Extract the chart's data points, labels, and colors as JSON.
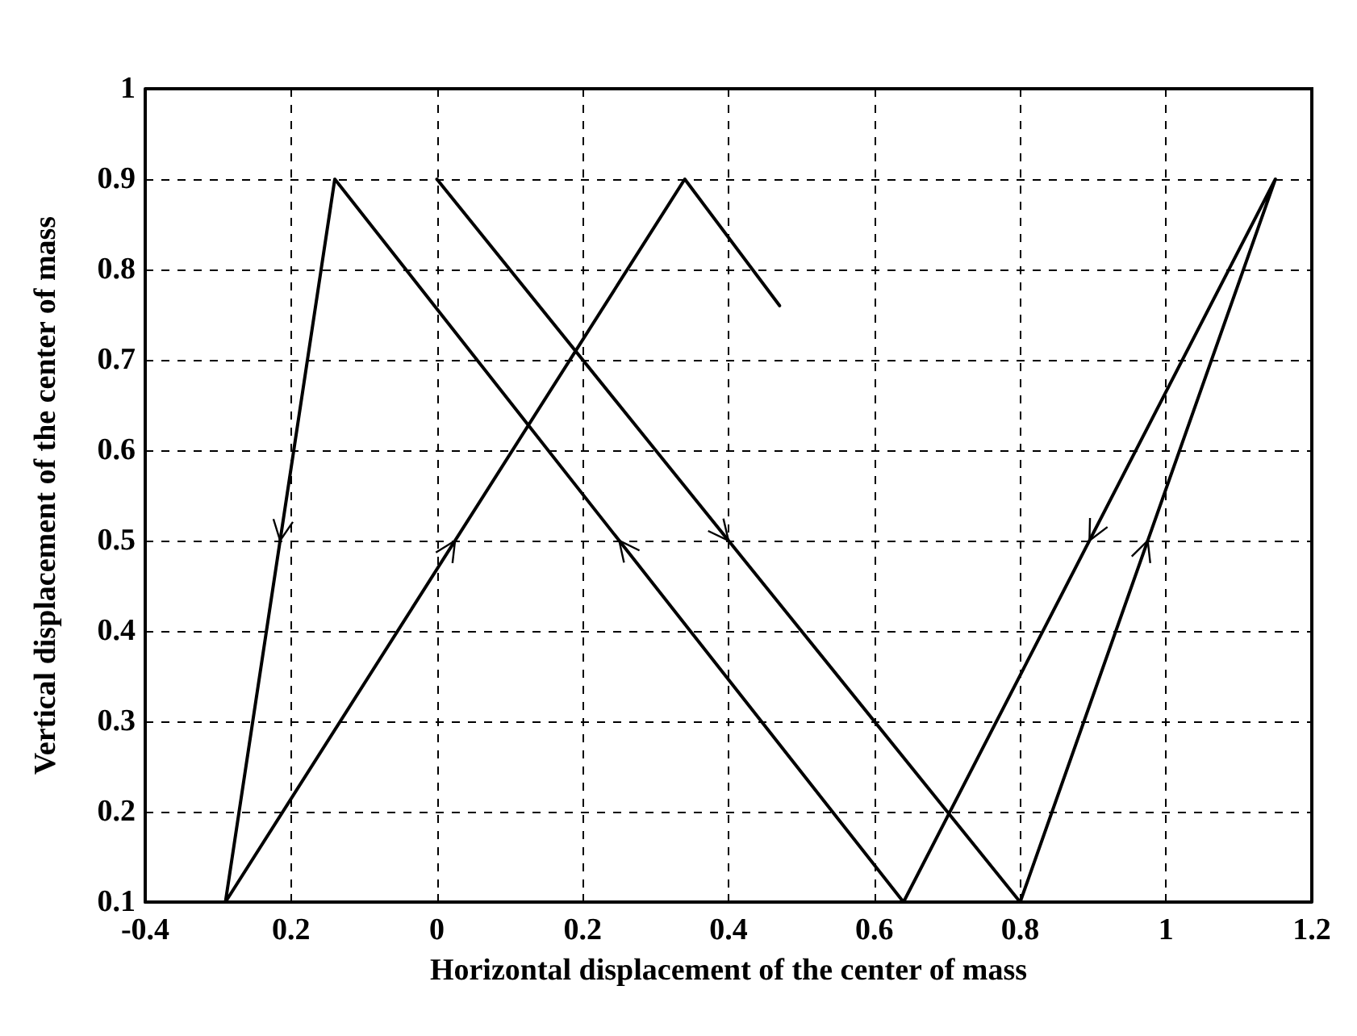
{
  "chart_data": {
    "type": "line",
    "xlabel": "Horizontal displacement of the center of mass",
    "ylabel": "Vertical displacement of the center of mass",
    "x": [
      0,
      0.8,
      1.15,
      0.64,
      -0.14,
      -0.29,
      0.34,
      0.47
    ],
    "series": [
      {
        "color": "#000000",
        "values": [
          0.9,
          0.1,
          0.9,
          0.1,
          0.9,
          0.1,
          0.9,
          0.76
        ]
      }
    ],
    "xlim": [
      -0.4,
      1.2
    ],
    "xticks": [
      -0.4,
      {
        "value": -0.2,
        "label": "0.2"
      },
      0,
      0.2,
      0.4,
      0.6,
      0.8,
      1,
      1.2
    ],
    "ylim": [
      0.1,
      1
    ],
    "yticks": [
      0.1,
      0.2,
      0.3,
      0.4,
      0.5,
      0.6,
      0.7,
      0.8,
      0.9,
      1
    ],
    "grid": true,
    "marker": "none",
    "line_style": "solid"
  }
}
